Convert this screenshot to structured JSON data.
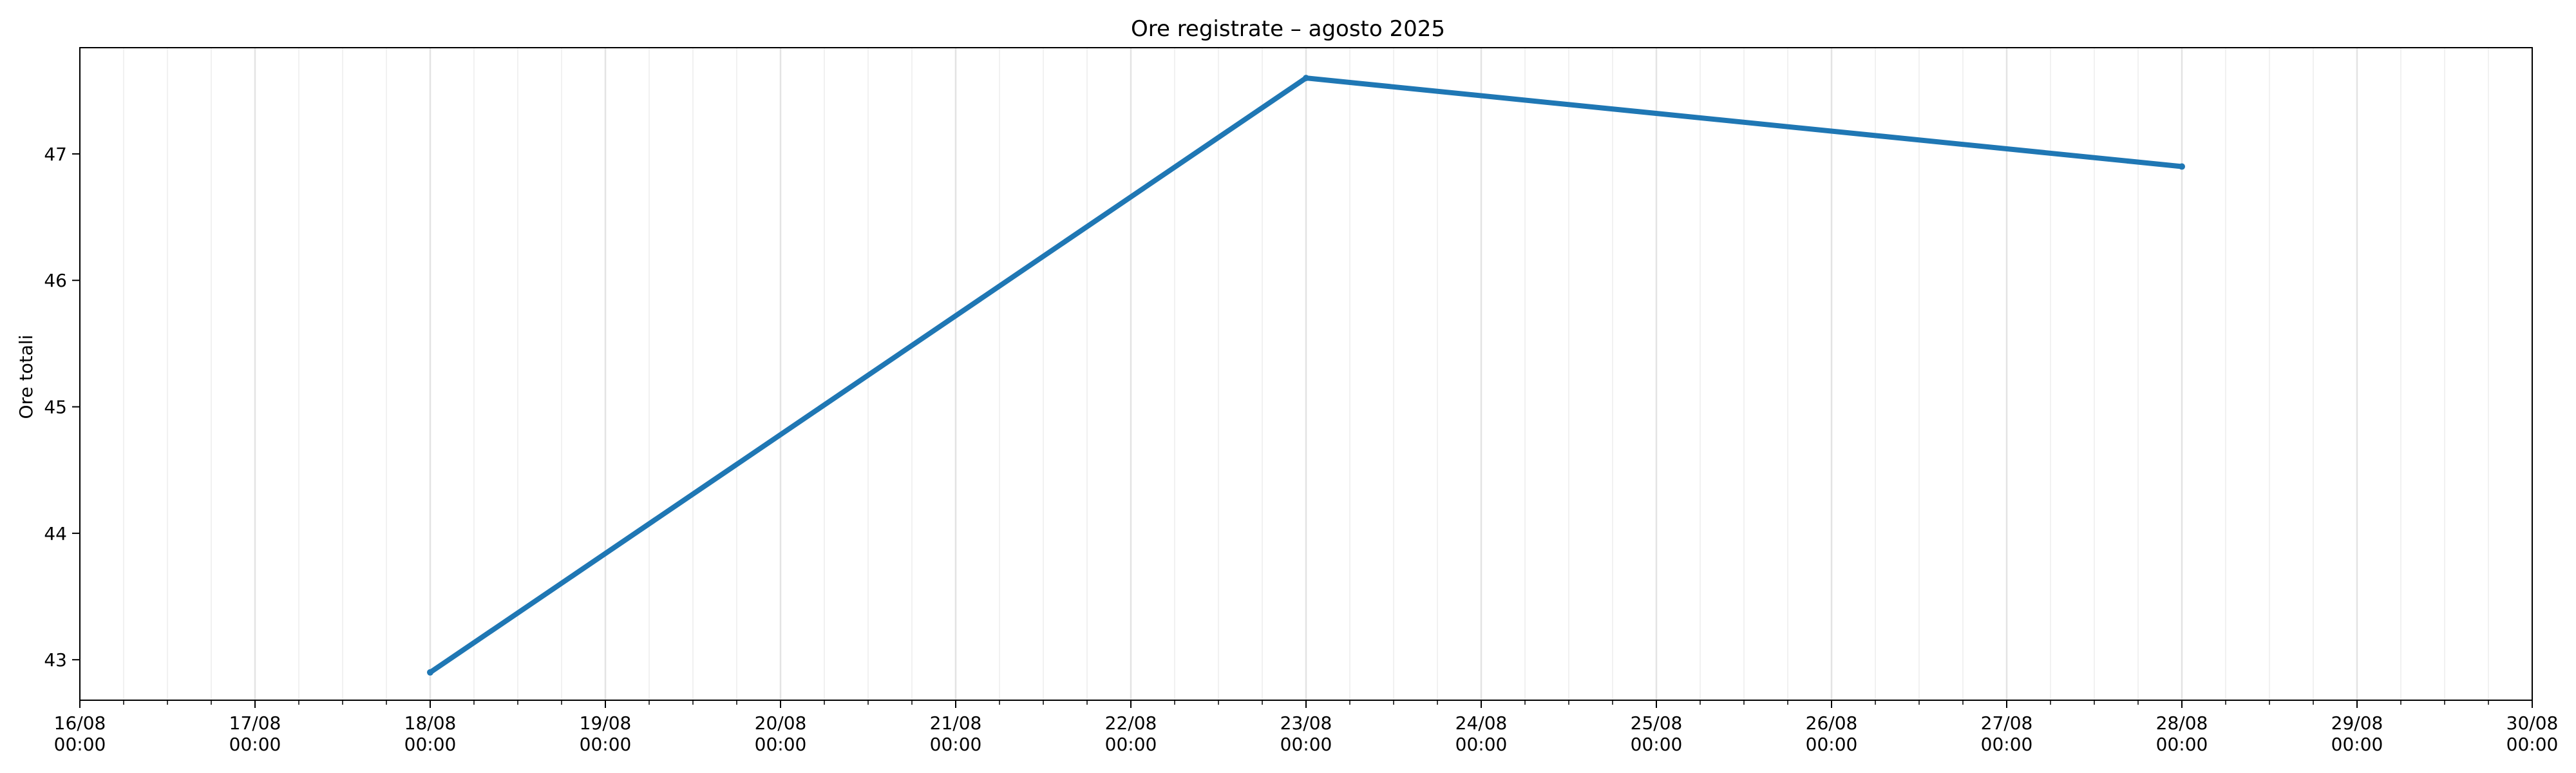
{
  "chart_data": {
    "type": "line",
    "title": "Ore registrate – agosto 2025",
    "xlabel": "",
    "ylabel": "Ore totali",
    "x_axis": {
      "type": "date",
      "range": [
        "2025-08-16",
        "2025-08-30"
      ],
      "ticks": [
        {
          "date": "2025-08-16",
          "label_day": "16/08",
          "label_time": "00:00"
        },
        {
          "date": "2025-08-17",
          "label_day": "17/08",
          "label_time": "00:00"
        },
        {
          "date": "2025-08-18",
          "label_day": "18/08",
          "label_time": "00:00"
        },
        {
          "date": "2025-08-19",
          "label_day": "19/08",
          "label_time": "00:00"
        },
        {
          "date": "2025-08-20",
          "label_day": "20/08",
          "label_time": "00:00"
        },
        {
          "date": "2025-08-21",
          "label_day": "21/08",
          "label_time": "00:00"
        },
        {
          "date": "2025-08-22",
          "label_day": "22/08",
          "label_time": "00:00"
        },
        {
          "date": "2025-08-23",
          "label_day": "23/08",
          "label_time": "00:00"
        },
        {
          "date": "2025-08-24",
          "label_day": "24/08",
          "label_time": "00:00"
        },
        {
          "date": "2025-08-25",
          "label_day": "25/08",
          "label_time": "00:00"
        },
        {
          "date": "2025-08-26",
          "label_day": "26/08",
          "label_time": "00:00"
        },
        {
          "date": "2025-08-27",
          "label_day": "27/08",
          "label_time": "00:00"
        },
        {
          "date": "2025-08-28",
          "label_day": "28/08",
          "label_time": "00:00"
        },
        {
          "date": "2025-08-29",
          "label_day": "29/08",
          "label_time": "00:00"
        },
        {
          "date": "2025-08-30",
          "label_day": "30/08",
          "label_time": "00:00"
        }
      ],
      "minor_ticks_per_day": 4
    },
    "y_axis": {
      "range": [
        42.68,
        47.84
      ],
      "ticks": [
        43,
        44,
        45,
        46,
        47
      ]
    },
    "grid": "vertical only",
    "legend": "none",
    "series": [
      {
        "x": [
          "2025-08-18",
          "2025-08-23",
          "2025-08-28"
        ],
        "y": [
          42.9,
          47.6,
          46.9
        ]
      }
    ],
    "colors": {
      "series": "#1f77b4",
      "axis": "#000000",
      "grid_major": "#e3e3e3",
      "grid_minor": "#f1f1f1"
    }
  }
}
